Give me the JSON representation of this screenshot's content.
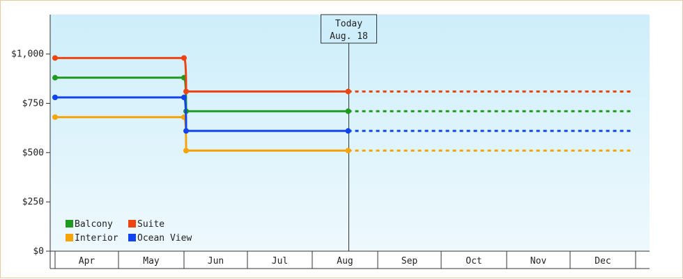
{
  "chart_data": {
    "type": "line",
    "step": true,
    "categories": [
      "Apr",
      "May",
      "Jun",
      "Jul",
      "Aug",
      "Sep",
      "Oct",
      "Nov",
      "Dec"
    ],
    "y_ticks": [
      "$0",
      "$250",
      "$500",
      "$750",
      "$1,000"
    ],
    "ylim": [
      0,
      1200
    ],
    "grid": false,
    "legend_position": "bottom-left",
    "today_marker": {
      "line1": "Today",
      "line2": "Aug. 18",
      "date": "2024-08-18"
    },
    "series": [
      {
        "name": "Balcony",
        "color": "#1f9a1f",
        "points": [
          [
            "2024-04-01",
            880
          ],
          [
            "2024-06-01",
            880
          ],
          [
            "2024-06-02",
            710
          ],
          [
            "2024-08-18",
            710
          ]
        ],
        "projection": [
          [
            "2024-08-18",
            710
          ],
          [
            "2024-12-31",
            710
          ]
        ]
      },
      {
        "name": "Suite",
        "color": "#ee4411",
        "points": [
          [
            "2024-04-01",
            980
          ],
          [
            "2024-06-01",
            980
          ],
          [
            "2024-06-02",
            810
          ],
          [
            "2024-08-18",
            810
          ]
        ],
        "projection": [
          [
            "2024-08-18",
            810
          ],
          [
            "2024-12-31",
            810
          ]
        ]
      },
      {
        "name": "Interior",
        "color": "#f5a50a",
        "points": [
          [
            "2024-04-01",
            680
          ],
          [
            "2024-06-01",
            680
          ],
          [
            "2024-06-02",
            510
          ],
          [
            "2024-08-18",
            510
          ]
        ],
        "projection": [
          [
            "2024-08-18",
            510
          ],
          [
            "2024-12-31",
            510
          ]
        ]
      },
      {
        "name": "Ocean View",
        "color": "#1144ee",
        "points": [
          [
            "2024-04-01",
            780
          ],
          [
            "2024-06-01",
            780
          ],
          [
            "2024-06-02",
            610
          ],
          [
            "2024-08-18",
            610
          ]
        ],
        "projection": [
          [
            "2024-08-18",
            610
          ],
          [
            "2024-12-31",
            610
          ]
        ]
      }
    ]
  }
}
